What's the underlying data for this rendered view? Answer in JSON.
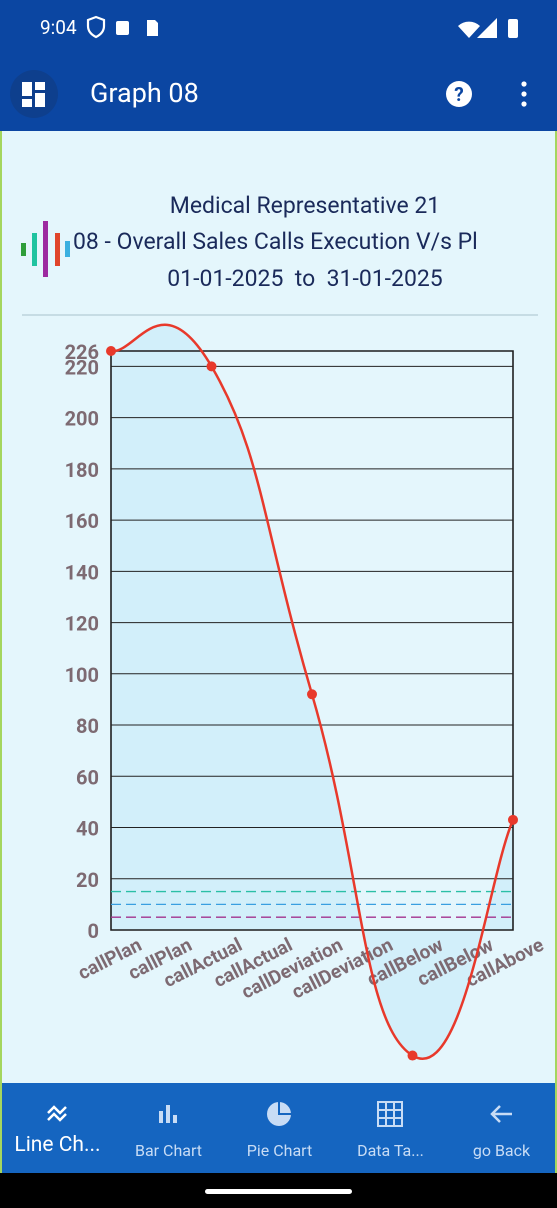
{
  "status_bar": {
    "time": "9:04"
  },
  "app_bar": {
    "title": "Graph 08"
  },
  "chart_data": {
    "type": "line",
    "title": "Medical Representative 21",
    "subtitle": "08 - Overall Sales Calls Execution V/s Pl",
    "date_range": "01-01-2025  to  31-01-2025",
    "x": [
      0,
      1,
      2,
      3,
      4
    ],
    "series": [
      {
        "name": null,
        "color": "#e8392b",
        "values": [
          226,
          220,
          92,
          -49,
          43
        ]
      }
    ],
    "xlim": [
      0,
      4
    ],
    "xticks": [
      {
        "value": 0,
        "label": "callPlan"
      },
      {
        "value": 0.5,
        "label": "callPlan"
      },
      {
        "value": 1,
        "label": "callActual"
      },
      {
        "value": 1.5,
        "label": "callActual"
      },
      {
        "value": 2,
        "label": "callDeviation"
      },
      {
        "value": 2.5,
        "label": "callDeviation"
      },
      {
        "value": 3,
        "label": "callBelow"
      },
      {
        "value": 3.5,
        "label": "callBelow"
      },
      {
        "value": 4,
        "label": "callAbove"
      }
    ],
    "ylim": [
      0,
      226
    ],
    "yticks": [
      0,
      20,
      40,
      60,
      80,
      100,
      120,
      140,
      160,
      180,
      200,
      220,
      226
    ],
    "grid": true,
    "reference_lines": [
      {
        "value": 15,
        "color": "#2bbfa6"
      },
      {
        "value": 10,
        "color": "#3a9fe0"
      },
      {
        "value": 5,
        "color": "#a3338f"
      }
    ]
  },
  "bottom_nav": [
    {
      "label": "Line Ch..."
    },
    {
      "label": "Bar Chart"
    },
    {
      "label": "Pie Chart"
    },
    {
      "label": "Data Ta..."
    },
    {
      "label": "go Back"
    }
  ]
}
